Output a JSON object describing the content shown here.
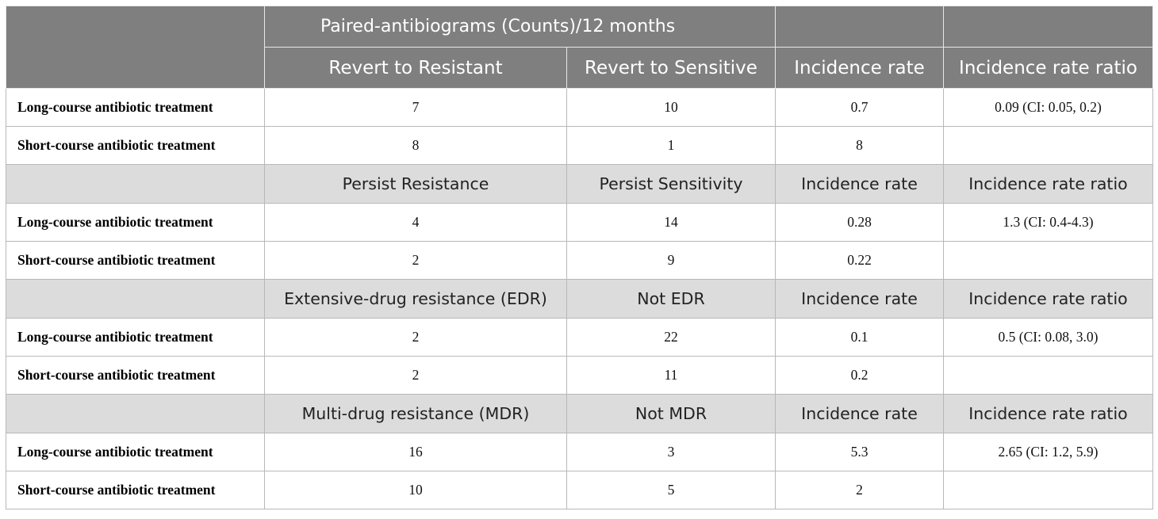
{
  "header": {
    "title": "Paired-antibiograms (Counts)/12 months",
    "columns": [
      "Revert to Resistant",
      "Revert to Sensitive",
      "Incidence rate",
      "Incidence rate ratio"
    ]
  },
  "sections": [
    {
      "rows": [
        {
          "label": "Long-course antibiotic treatment",
          "values": [
            "7",
            "10",
            "0.7",
            "0.09 (CI: 0.05, 0.2)"
          ]
        },
        {
          "label": "Short-course antibiotic treatment",
          "values": [
            "8",
            "1",
            "8",
            ""
          ]
        }
      ]
    },
    {
      "columns": [
        "Persist Resistance",
        "Persist Sensitivity",
        "Incidence rate",
        "Incidence rate ratio"
      ],
      "rows": [
        {
          "label": "Long-course antibiotic treatment",
          "values": [
            "4",
            "14",
            "0.28",
            "1.3 (CI: 0.4-4.3)"
          ]
        },
        {
          "label": "Short-course antibiotic treatment",
          "values": [
            "2",
            "9",
            "0.22",
            ""
          ]
        }
      ]
    },
    {
      "columns": [
        "Extensive-drug resistance (EDR)",
        "Not EDR",
        "Incidence rate",
        "Incidence rate ratio"
      ],
      "rows": [
        {
          "label": "Long-course antibiotic treatment",
          "values": [
            "2",
            "22",
            "0.1",
            "0.5 (CI: 0.08, 3.0)"
          ]
        },
        {
          "label": "Short-course antibiotic treatment",
          "values": [
            "2",
            "11",
            "0.2",
            ""
          ]
        }
      ]
    },
    {
      "columns": [
        "Multi-drug resistance (MDR)",
        "Not MDR",
        "Incidence rate",
        "Incidence rate ratio"
      ],
      "rows": [
        {
          "label": "Long-course antibiotic treatment",
          "values": [
            "16",
            "3",
            "5.3",
            "2.65 (CI: 1.2, 5.9)"
          ]
        },
        {
          "label": "Short-course antibiotic treatment",
          "values": [
            "10",
            "5",
            "2",
            ""
          ]
        }
      ]
    }
  ]
}
